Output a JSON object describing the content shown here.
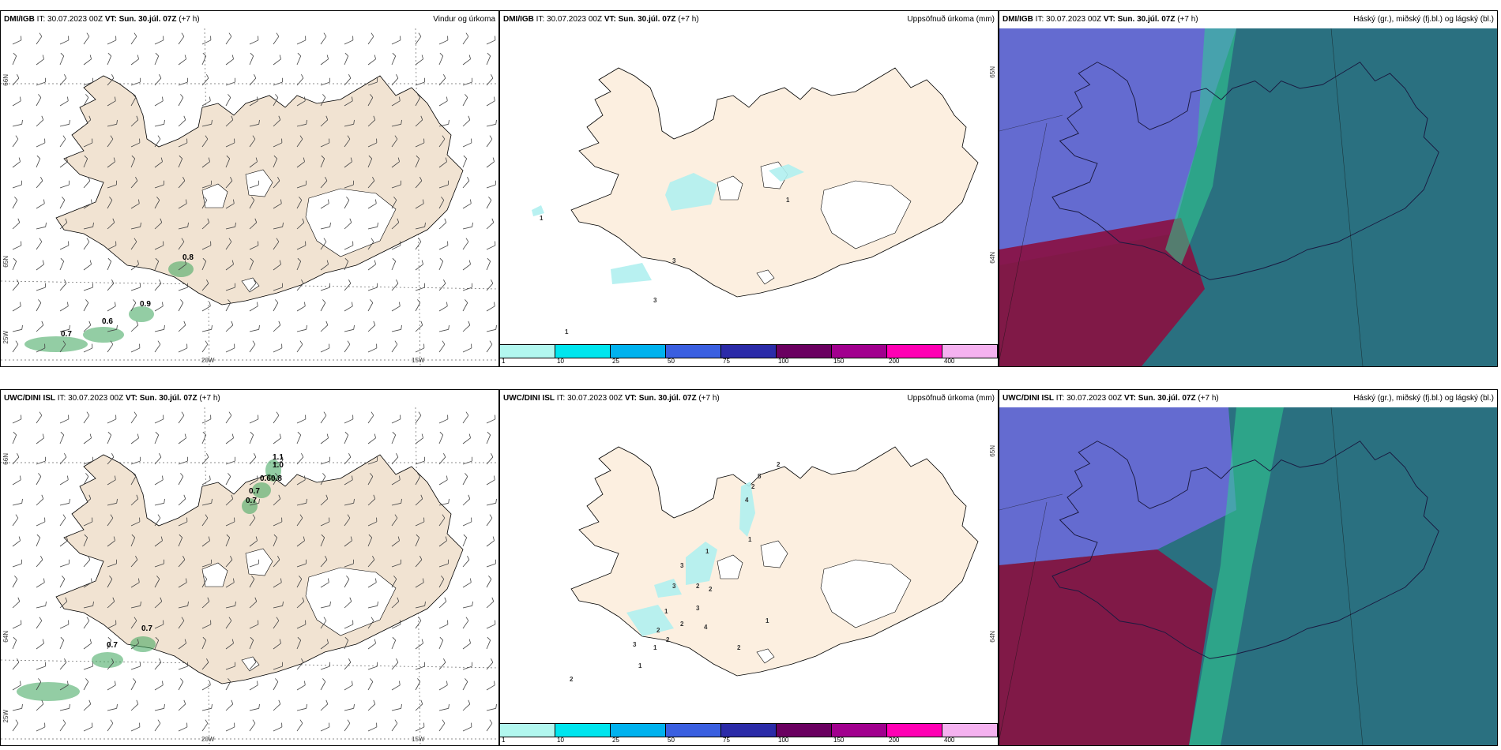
{
  "panels": {
    "dmi_wind": {
      "model": "DMI/IGB",
      "it": "IT: 30.07.2023 00Z",
      "vt_label": "VT:",
      "vt": "Sun. 30.júl. 07Z",
      "lead": "(+7 h)",
      "title": "Vindur og úrkoma",
      "lat_labels": [
        "66N",
        "65N",
        "25W"
      ],
      "lon_labels": [
        "20W",
        "15W"
      ],
      "values": [
        "0.8",
        "0.9",
        "0.6",
        "0.7"
      ]
    },
    "dmi_precip": {
      "model": "DMI/IGB",
      "it": "IT: 30.07.2023 00Z",
      "vt_label": "VT:",
      "vt": "Sun. 30.júl. 07Z",
      "lead": "(+7 h)",
      "title": "Uppsöfnuð úrkoma (mm)",
      "lat_labels": [
        "65N",
        "64N"
      ],
      "values": [
        "1",
        "3",
        "3",
        "1",
        "1"
      ]
    },
    "dmi_cloud": {
      "model": "DMI/IGB",
      "it": "IT: 30.07.2023 00Z",
      "vt_label": "VT:",
      "vt": "Sun. 30.júl. 07Z",
      "lead": "(+7 h)",
      "title": "Háský (gr.), miðský (fj.bl.) og lágský (bl.)"
    },
    "uwc_wind": {
      "model": "UWC/DINI ISL",
      "it": "IT: 30.07.2023 00Z",
      "vt_label": "VT:",
      "vt": "Sun. 30.júl. 07Z",
      "lead": "(+7 h)",
      "title": "",
      "lat_labels": [
        "66N",
        "64N",
        "25W"
      ],
      "lon_labels": [
        "20W",
        "15W"
      ],
      "values": [
        "1.1",
        "1.0",
        "0.6",
        "0.8",
        "0.7",
        "0.7",
        "0.7",
        "0.7"
      ]
    },
    "uwc_precip": {
      "model": "UWC/DINI ISL",
      "it": "IT: 30.07.2023 00Z",
      "vt_label": "VT:",
      "vt": "Sun. 30.júl. 07Z",
      "lead": "(+7 h)",
      "title": "Uppsöfnuð úrkoma (mm)",
      "lat_labels": [
        "65N",
        "64N"
      ],
      "values": [
        "2",
        "5",
        "2",
        "4",
        "1",
        "1",
        "3",
        "3",
        "2",
        "2",
        "3",
        "1",
        "2",
        "4",
        "2",
        "2",
        "1",
        "3",
        "2",
        "1",
        "1",
        "2"
      ]
    },
    "uwc_cloud": {
      "model": "UWC/DINI ISL",
      "it": "IT: 30.07.2023 00Z",
      "vt_label": "VT:",
      "vt": "Sun. 30.júl. 07Z",
      "lead": "(+7 h)",
      "title": "Háský (gr.), miðský (fj.bl.) og lágský (bl.)"
    }
  },
  "legend": {
    "labels": [
      "1",
      "10",
      "25",
      "50",
      "75",
      "100",
      "150",
      "200",
      "400"
    ],
    "colors": [
      "#b2f7ef",
      "#00e5ee",
      "#00b2ee",
      "#3a5fe0",
      "#2b2ba8",
      "#6a0060",
      "#a1008e",
      "#ff00b4",
      "#f5b2f0"
    ]
  },
  "colors": {
    "land": "#f1e3d2",
    "land_precip": "#fcefe0",
    "precip_light": "#b0f0f0",
    "ice": "#ffffff",
    "cloud_sea": "#2a7080",
    "cloud_high": "#6a6ad8",
    "cloud_low": "#8a1040"
  }
}
